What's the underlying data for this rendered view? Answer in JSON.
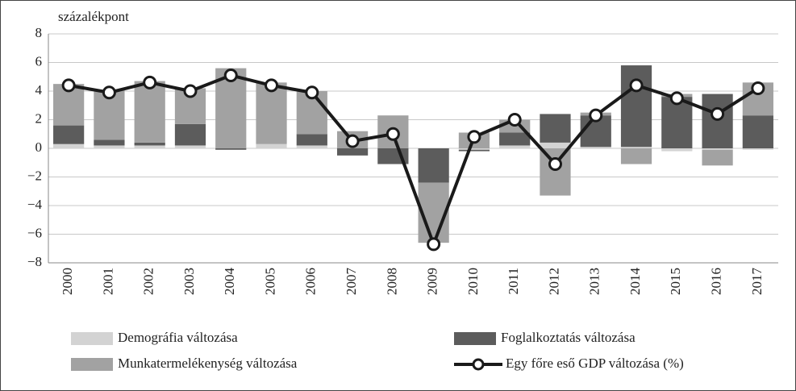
{
  "chart_data": {
    "type": "bar",
    "stacked": true,
    "ylabel": "százalékpont",
    "categories": [
      "2000",
      "2001",
      "2002",
      "2003",
      "2004",
      "2005",
      "2006",
      "2007",
      "2008",
      "2009",
      "2010",
      "2011",
      "2012",
      "2013",
      "2014",
      "2015",
      "2016",
      "2017"
    ],
    "series": [
      {
        "name": "Demográfia változása",
        "color": "#d3d3d3",
        "values": [
          0.3,
          0.2,
          0.2,
          0.2,
          0,
          0.3,
          0.2,
          0,
          0,
          0,
          -0.1,
          0.2,
          0.4,
          0.1,
          0.1,
          -0.2,
          -0.1,
          -0.1
        ]
      },
      {
        "name": "Foglalkoztatás változása",
        "color": "#5c5c5c",
        "values": [
          1.3,
          0.4,
          0.2,
          1.5,
          -0.1,
          0,
          0.8,
          -0.5,
          -1.1,
          -2.4,
          -0.1,
          0.9,
          2.0,
          2.2,
          5.7,
          3.6,
          3.8,
          2.3
        ]
      },
      {
        "name": "Munkatermelékenység változása",
        "color": "#a2a2a2",
        "values": [
          2.9,
          3.5,
          4.3,
          2.5,
          5.6,
          4.3,
          3.0,
          1.2,
          2.3,
          -4.2,
          1.1,
          0.9,
          -3.3,
          0.2,
          -1.1,
          0.2,
          -1.1,
          2.3
        ]
      },
      {
        "name": "Egy főre eső GDP változása (%)",
        "type": "line",
        "color": "#1a1a1a",
        "values": [
          4.4,
          3.9,
          4.6,
          4.0,
          5.1,
          4.4,
          3.9,
          0.5,
          1.0,
          -6.7,
          0.8,
          2.0,
          -1.1,
          2.3,
          4.4,
          3.5,
          2.4,
          4.2
        ]
      }
    ],
    "ylim": [
      -8,
      8
    ],
    "yticks": [
      {
        "value": -8,
        "label": "−8"
      },
      {
        "value": -6,
        "label": "−6"
      },
      {
        "value": -4,
        "label": "−4"
      },
      {
        "value": -2,
        "label": "−2"
      },
      0,
      2,
      4,
      6,
      8
    ],
    "grid": true
  }
}
